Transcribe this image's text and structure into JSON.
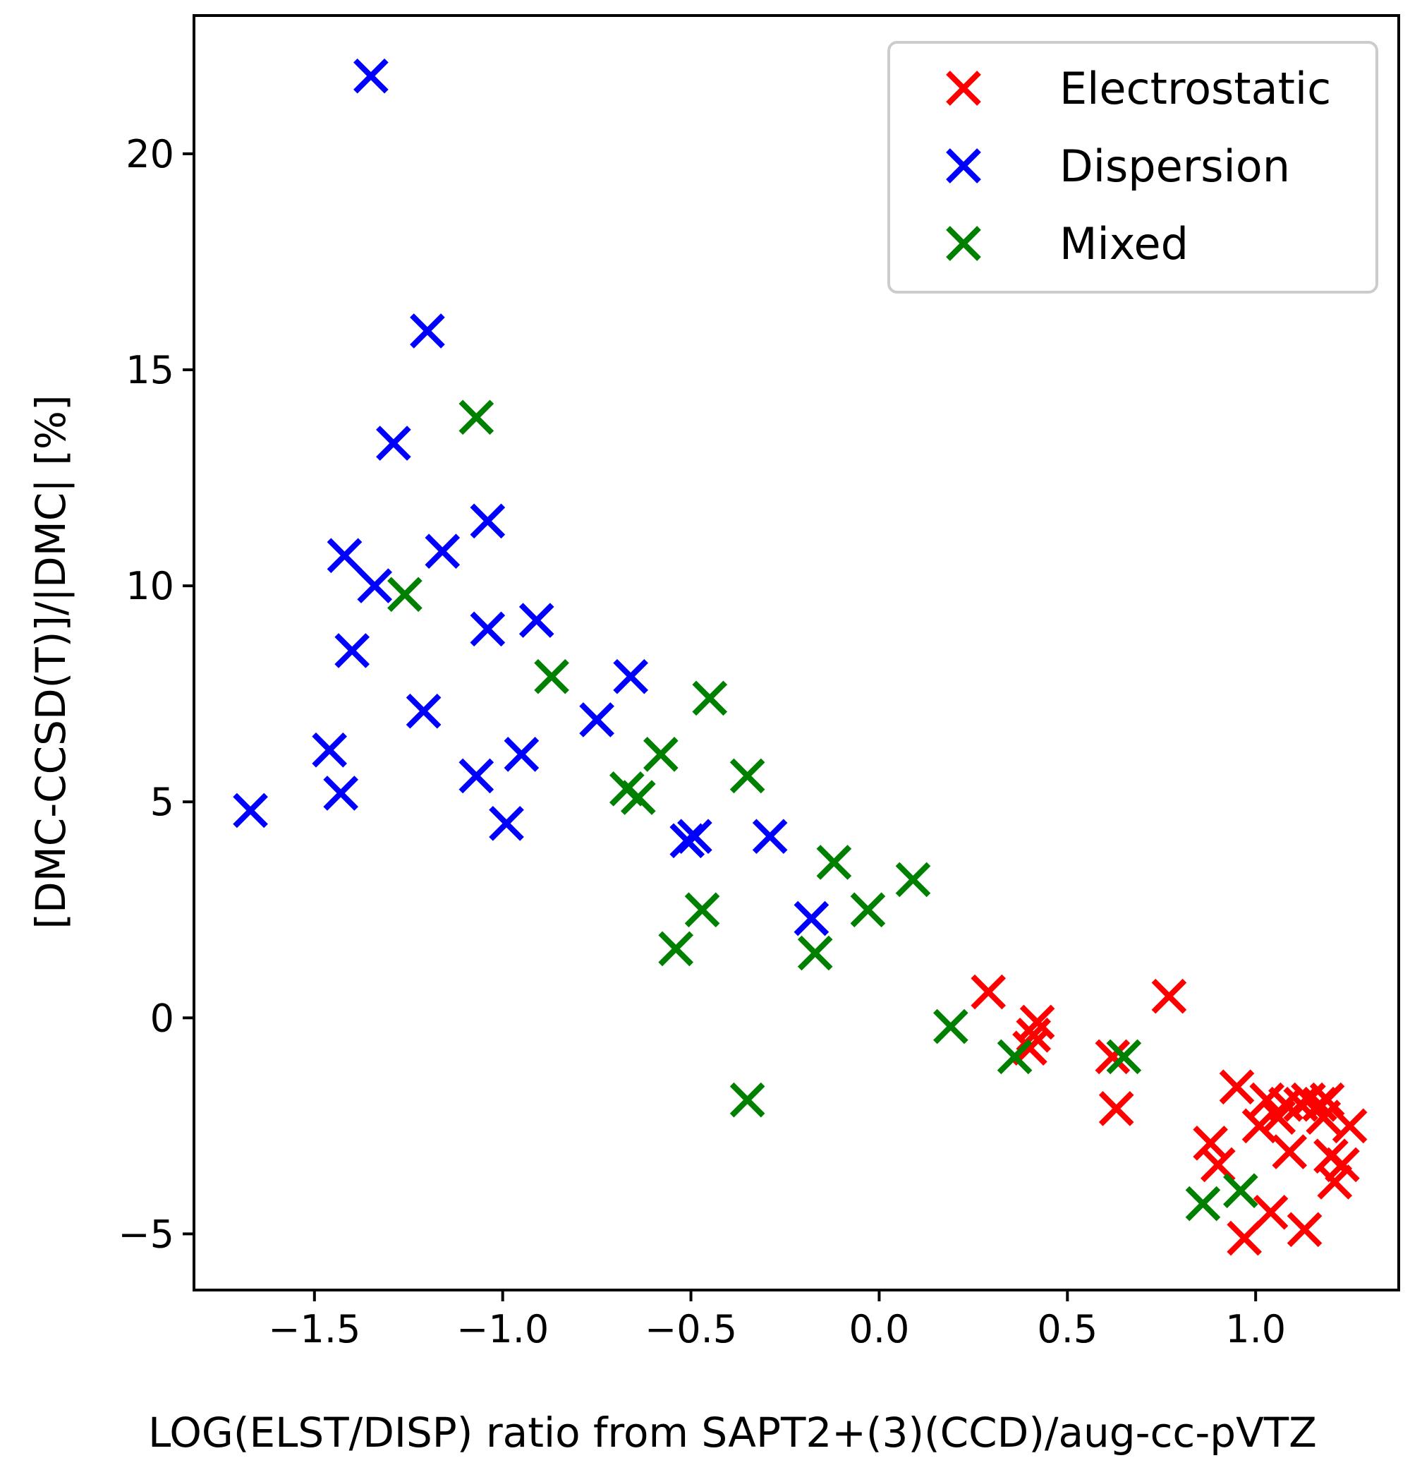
{
  "chart_data": {
    "type": "scatter",
    "title": "",
    "xlabel": "LOG(ELST/DISP) ratio from SAPT2+(3)(CCD)/aug-cc-pVTZ",
    "ylabel": "[DMC-CCSD(T)]/|DMC| [%]",
    "xlim": [
      -1.82,
      1.38
    ],
    "ylim": [
      -6.3,
      23.2
    ],
    "xticks": [
      -1.5,
      -1.0,
      -0.5,
      0.0,
      0.5,
      1.0
    ],
    "xtick_labels": [
      "−1.5",
      "−1.0",
      "−0.5",
      "0.0",
      "0.5",
      "1.0"
    ],
    "yticks": [
      -5,
      0,
      5,
      10,
      15,
      20
    ],
    "ytick_labels": [
      "−5",
      "0",
      "5",
      "10",
      "15",
      "20"
    ],
    "grid": false,
    "marker": "x",
    "legend": {
      "position": "top-right"
    },
    "series": [
      {
        "name": "Electrostatic",
        "color": "#ff0000",
        "points": [
          [
            0.29,
            0.6
          ],
          [
            0.4,
            -0.7
          ],
          [
            0.41,
            -0.4
          ],
          [
            0.42,
            -0.1
          ],
          [
            0.62,
            -0.9
          ],
          [
            0.63,
            -2.1
          ],
          [
            0.77,
            0.5
          ],
          [
            0.88,
            -2.9
          ],
          [
            0.9,
            -3.4
          ],
          [
            0.95,
            -1.6
          ],
          [
            0.97,
            -5.1
          ],
          [
            1.01,
            -2.5
          ],
          [
            1.03,
            -1.9
          ],
          [
            1.04,
            -4.5
          ],
          [
            1.06,
            -2.3
          ],
          [
            1.08,
            -2.0
          ],
          [
            1.09,
            -3.1
          ],
          [
            1.12,
            -2.0
          ],
          [
            1.13,
            -4.9
          ],
          [
            1.14,
            -1.9
          ],
          [
            1.17,
            -2.0
          ],
          [
            1.18,
            -2.3
          ],
          [
            1.19,
            -1.9
          ],
          [
            1.2,
            -3.2
          ],
          [
            1.21,
            -3.8
          ],
          [
            1.23,
            -3.4
          ],
          [
            1.25,
            -2.5
          ]
        ]
      },
      {
        "name": "Dispersion",
        "color": "#0000ff",
        "points": [
          [
            -1.67,
            4.8
          ],
          [
            -1.46,
            6.2
          ],
          [
            -1.43,
            5.2
          ],
          [
            -1.42,
            10.7
          ],
          [
            -1.4,
            8.5
          ],
          [
            -1.35,
            21.8
          ],
          [
            -1.34,
            10.0
          ],
          [
            -1.29,
            13.3
          ],
          [
            -1.2,
            15.9
          ],
          [
            -1.21,
            7.1
          ],
          [
            -1.16,
            10.8
          ],
          [
            -1.07,
            5.6
          ],
          [
            -1.04,
            11.5
          ],
          [
            -1.04,
            9.0
          ],
          [
            -0.99,
            4.5
          ],
          [
            -0.95,
            6.1
          ],
          [
            -0.91,
            9.2
          ],
          [
            -0.75,
            6.9
          ],
          [
            -0.66,
            7.9
          ],
          [
            -0.51,
            4.1
          ],
          [
            -0.49,
            4.2
          ],
          [
            -0.29,
            4.2
          ],
          [
            -0.18,
            2.3
          ]
        ]
      },
      {
        "name": "Mixed",
        "color": "#008000",
        "points": [
          [
            -1.26,
            9.8
          ],
          [
            -1.07,
            13.9
          ],
          [
            -0.87,
            7.9
          ],
          [
            -0.67,
            5.3
          ],
          [
            -0.64,
            5.1
          ],
          [
            -0.58,
            6.1
          ],
          [
            -0.54,
            1.6
          ],
          [
            -0.47,
            2.5
          ],
          [
            -0.45,
            7.4
          ],
          [
            -0.35,
            5.6
          ],
          [
            -0.35,
            -1.9
          ],
          [
            -0.17,
            1.5
          ],
          [
            -0.12,
            3.6
          ],
          [
            -0.03,
            2.5
          ],
          [
            0.09,
            3.2
          ],
          [
            0.19,
            -0.2
          ],
          [
            0.36,
            -0.9
          ],
          [
            0.65,
            -0.9
          ],
          [
            0.86,
            -4.3
          ],
          [
            0.96,
            -4.0
          ]
        ]
      }
    ]
  }
}
